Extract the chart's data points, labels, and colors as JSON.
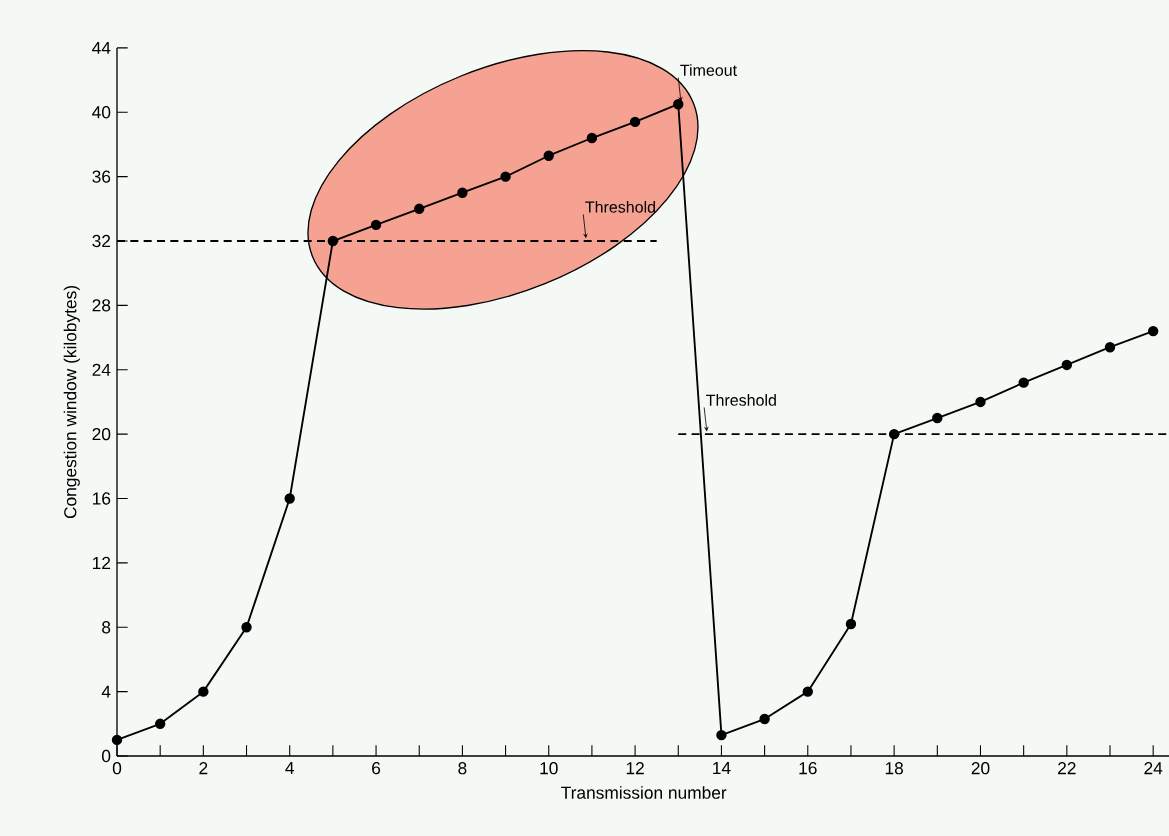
{
  "chart_data": {
    "type": "line",
    "xlabel": "Transmission number",
    "ylabel": "Congestion window (kilobytes)",
    "x": [
      0,
      1,
      2,
      3,
      4,
      5,
      6,
      7,
      8,
      9,
      10,
      11,
      12,
      13,
      14,
      15,
      16,
      17,
      18,
      19,
      20,
      21,
      22,
      23,
      24
    ],
    "series": [
      {
        "color": "#000000",
        "marker": "circle",
        "line_style": "solid",
        "values": [
          1,
          2,
          4,
          8,
          16,
          32,
          33,
          34,
          35,
          36,
          37.3,
          38.4,
          39.4,
          40.5,
          1.3,
          2.3,
          4,
          8.2,
          20,
          21,
          22,
          23.2,
          24.3,
          25.4,
          26.4
        ]
      },
      {
        "type": "line",
        "color": "#000000",
        "marker": "none",
        "line_style": "dashed",
        "x": [
          0,
          12.5
        ],
        "values": [
          32,
          32
        ]
      },
      {
        "type": "line",
        "color": "#000000",
        "marker": "none",
        "line_style": "dashed",
        "x": [
          13,
          24.4
        ],
        "values": [
          20,
          20
        ]
      }
    ],
    "annotations": [
      {
        "text": "Timeout",
        "x": 13,
        "y": 40.5
      },
      {
        "text": "Threshold",
        "x": 10.8,
        "y": 32
      },
      {
        "text": "Threshold",
        "x": 13.6,
        "y": 20
      }
    ],
    "xlim": [
      0,
      24.4
    ],
    "ylim": [
      0,
      44
    ],
    "xticks": [
      0,
      {
        "value": 1,
        "label": null
      },
      2,
      {
        "value": 3,
        "label": null
      },
      4,
      {
        "value": 5,
        "label": null
      },
      6,
      {
        "value": 7,
        "label": null
      },
      8,
      {
        "value": 9,
        "label": null
      },
      10,
      {
        "value": 11,
        "label": null
      },
      12,
      {
        "value": 13,
        "label": null
      },
      14,
      {
        "value": 15,
        "label": null
      },
      16,
      {
        "value": 17,
        "label": null
      },
      18,
      {
        "value": 19,
        "label": null
      },
      20,
      {
        "value": 21,
        "label": null
      },
      22,
      {
        "value": 23,
        "label": null
      },
      24
    ],
    "yticks": [
      0,
      4,
      8,
      12,
      16,
      20,
      24,
      28,
      32,
      36,
      40,
      44
    ],
    "grid": false
  }
}
